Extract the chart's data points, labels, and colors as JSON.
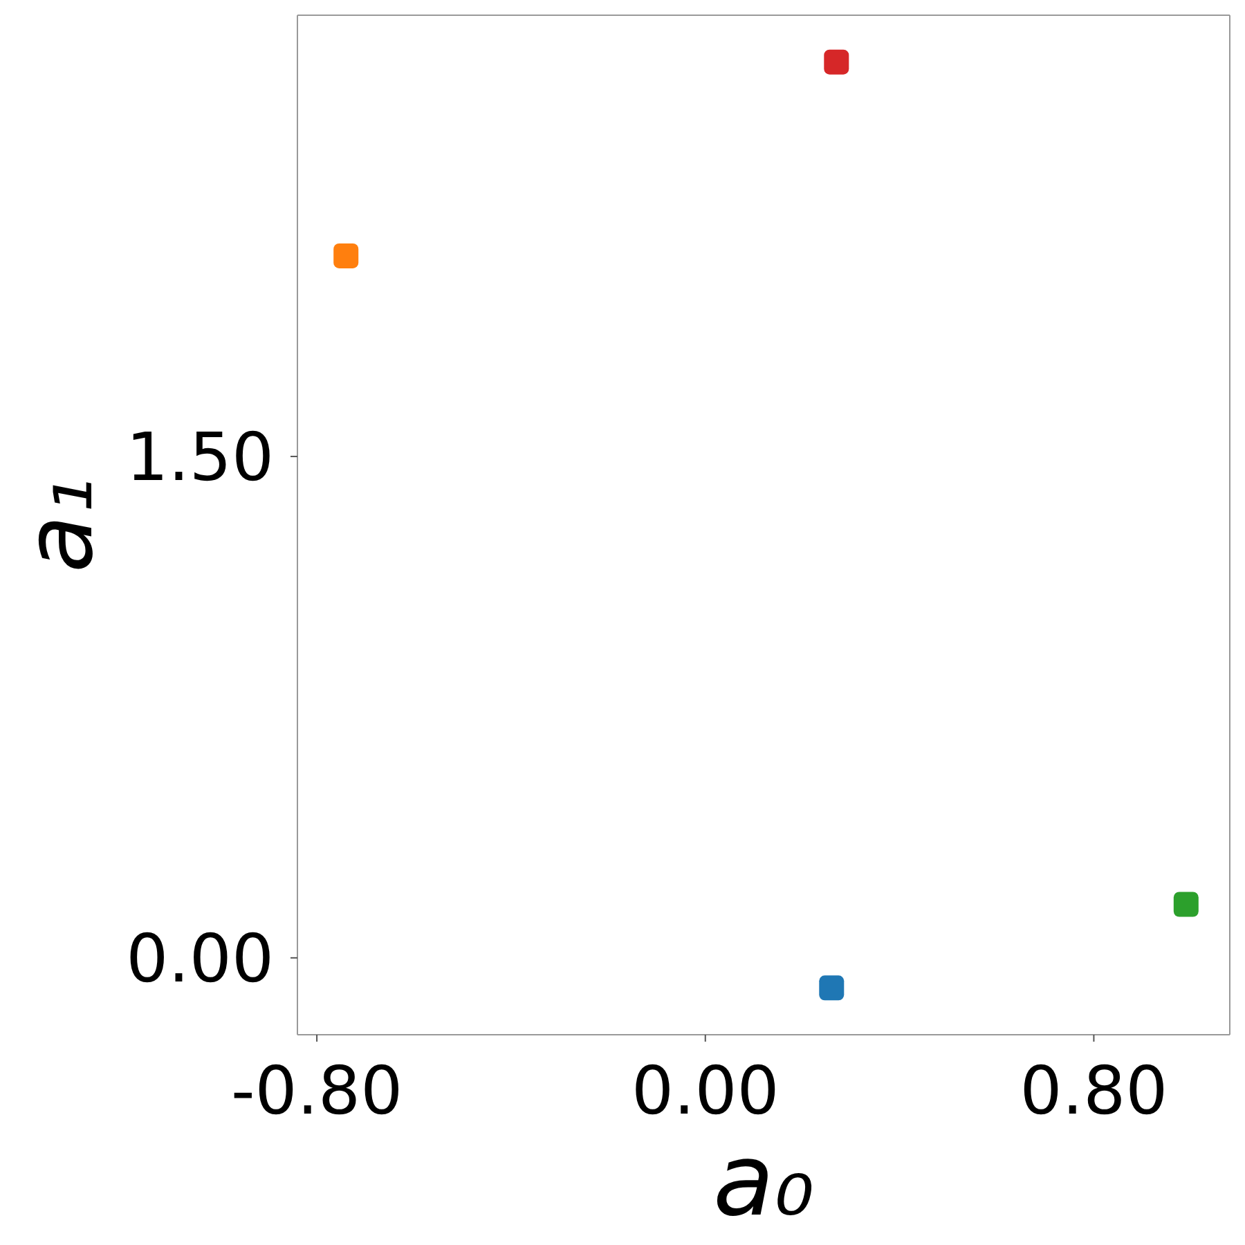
{
  "chart_data": {
    "type": "scatter",
    "xlabel": "a₀",
    "ylabel": "a₁",
    "x": [
      0.26,
      -0.74,
      0.99,
      0.27
    ],
    "values": [
      -0.09,
      2.1,
      0.16,
      2.68
    ],
    "colors": [
      "#1f77b4",
      "#ff7f0e",
      "#2ca02c",
      "#d62728"
    ],
    "marker": "square",
    "xlim": [
      -0.84,
      1.08
    ],
    "ylim": [
      -0.23,
      2.82
    ],
    "xticks": [
      {
        "value": -0.8,
        "label": "-0.80"
      },
      {
        "value": 0,
        "label": "0.00"
      },
      {
        "value": 0.8,
        "label": "0.80"
      }
    ],
    "yticks": [
      {
        "value": 0,
        "label": "0.00"
      },
      {
        "value": 1.5,
        "label": "1.50"
      }
    ]
  }
}
